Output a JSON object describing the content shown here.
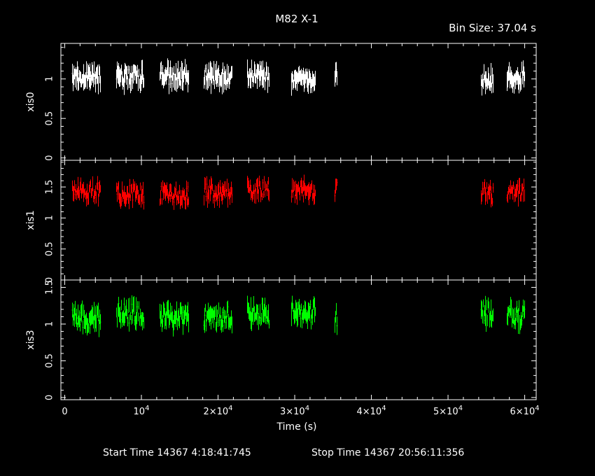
{
  "title": "M82 X-1",
  "bin_size_label": "Bin Size: 37.04 s",
  "footer": {
    "start_time": "Start Time 14367  4:18:41:745",
    "stop_time": "Stop Time 14367 20:56:11:356"
  },
  "chart_data": {
    "type": "scatter",
    "xlabel": "Time (s)",
    "x_range": [
      -500,
      61500
    ],
    "x_ticks": [
      {
        "value": 0,
        "label": "0",
        "exp": ""
      },
      {
        "value": 10000,
        "label": "10",
        "exp": "4"
      },
      {
        "value": 20000,
        "label": "2×10",
        "exp": "4"
      },
      {
        "value": 30000,
        "label": "3×10",
        "exp": "4"
      },
      {
        "value": 40000,
        "label": "4×10",
        "exp": "4"
      },
      {
        "value": 50000,
        "label": "5×10",
        "exp": "4"
      },
      {
        "value": 60000,
        "label": "6×10",
        "exp": "4"
      }
    ],
    "observation_segments": [
      [
        1000,
        4600
      ],
      [
        6700,
        10300
      ],
      [
        12400,
        16200
      ],
      [
        18100,
        21800
      ],
      [
        23800,
        26700
      ],
      [
        29500,
        32700
      ],
      [
        35200,
        35500
      ],
      [
        54300,
        55900
      ],
      [
        57700,
        60000
      ]
    ],
    "panels": [
      {
        "name": "xis0",
        "color": "#ffffff",
        "y_range": [
          -0.03,
          1.45
        ],
        "y_ticks": [
          {
            "value": 0,
            "label": "0"
          },
          {
            "value": 0.5,
            "label": "0.5"
          },
          {
            "value": 1,
            "label": "1"
          }
        ],
        "level": 1.0,
        "spread": 0.11
      },
      {
        "name": "xis1",
        "color": "#ff0000",
        "y_range": [
          0,
          1.93
        ],
        "y_ticks": [
          {
            "value": 0,
            "label": "0"
          },
          {
            "value": 0.5,
            "label": "0.5"
          },
          {
            "value": 1,
            "label": "1"
          },
          {
            "value": 1.5,
            "label": "1.5"
          }
        ],
        "level": 1.42,
        "spread": 0.14
      },
      {
        "name": "xis3",
        "color": "#00ff00",
        "y_range": [
          -0.03,
          1.6
        ],
        "y_ticks": [
          {
            "value": 0,
            "label": "0"
          },
          {
            "value": 0.5,
            "label": "0.5"
          },
          {
            "value": 1,
            "label": "1"
          },
          {
            "value": 1.5,
            "label": "1.5"
          }
        ],
        "level": 1.12,
        "spread": 0.14
      }
    ]
  }
}
